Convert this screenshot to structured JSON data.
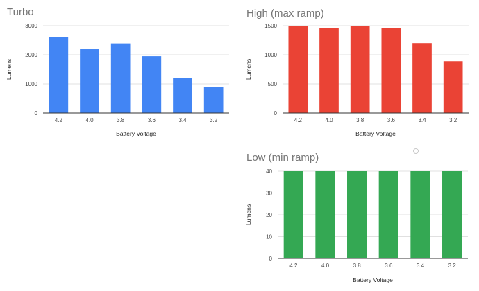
{
  "chart_data": [
    {
      "type": "bar",
      "title": "Turbo",
      "xlabel": "Battery Voltage",
      "ylabel": "Lumens",
      "categories": [
        "4.2",
        "4.0",
        "3.8",
        "3.6",
        "3.4",
        "3.2"
      ],
      "values": [
        2600,
        2190,
        2390,
        1950,
        1200,
        890
      ],
      "ylim": [
        0,
        3000
      ],
      "yticks": [
        0,
        1000,
        2000,
        3000
      ],
      "color": "#4285f4",
      "grid": true,
      "legend": "none"
    },
    {
      "type": "bar",
      "title": "High (max ramp)",
      "xlabel": "Battery Voltage",
      "ylabel": "Lumens",
      "categories": [
        "4.2",
        "4.0",
        "3.8",
        "3.6",
        "3.4",
        "3.2"
      ],
      "values": [
        1500,
        1460,
        1500,
        1460,
        1200,
        890
      ],
      "ylim": [
        0,
        1500
      ],
      "yticks": [
        0,
        500,
        1000,
        1500
      ],
      "color": "#ea4335",
      "grid": true,
      "legend": "none"
    },
    {
      "type": "bar",
      "title": "Low (min ramp)",
      "xlabel": "Battery Voltage",
      "ylabel": "Lumens",
      "categories": [
        "4.2",
        "4.0",
        "3.8",
        "3.6",
        "3.4",
        "3.2"
      ],
      "values": [
        40,
        40,
        40,
        40,
        40,
        40
      ],
      "ylim": [
        0,
        40
      ],
      "yticks": [
        0,
        10,
        20,
        30,
        40
      ],
      "color": "#34a853",
      "grid": true,
      "legend": "none"
    }
  ]
}
